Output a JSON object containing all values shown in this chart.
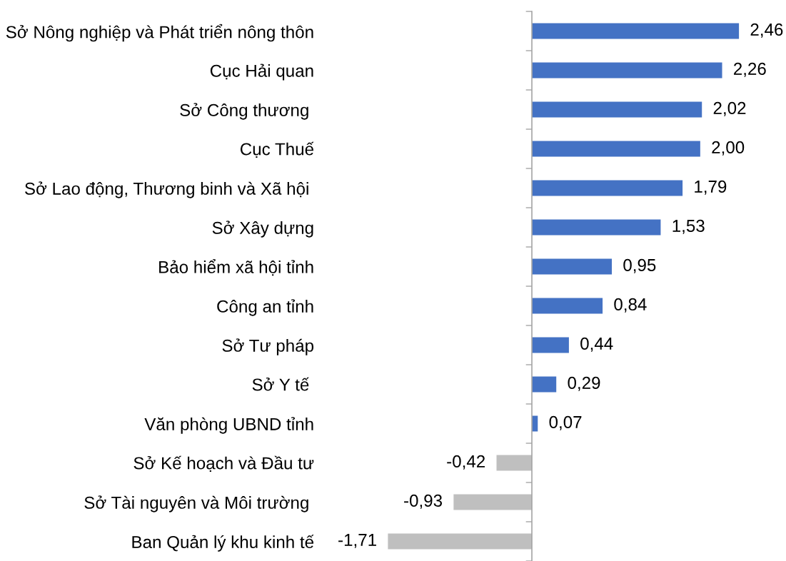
{
  "chart_data": {
    "type": "bar",
    "orientation": "horizontal",
    "categories": [
      "Sở Nông nghiệp và Phát triển nông thôn",
      "Cục Hải quan",
      "Sở Công thương ",
      "Cục Thuế",
      "Sở Lao động, Thương binh và Xã hội ",
      "Sở Xây dựng",
      "Bảo hiểm xã hội tỉnh",
      "Công an tỉnh",
      "Sở Tư pháp",
      "Sở Y tế ",
      "Văn phòng UBND tỉnh",
      "Sở Kế hoạch và Đầu tư",
      "Sở Tài nguyên và Môi trường ",
      "Ban Quản lý khu kinh tế"
    ],
    "values": [
      2.46,
      2.26,
      2.02,
      2.0,
      1.79,
      1.53,
      0.95,
      0.84,
      0.44,
      0.29,
      0.07,
      -0.42,
      -0.93,
      -1.71
    ],
    "colors": [
      "#4472c4",
      "#4472c4",
      "#4472c4",
      "#4472c4",
      "#4472c4",
      "#4472c4",
      "#4472c4",
      "#4472c4",
      "#4472c4",
      "#4472c4",
      "#4472c4",
      "#bfbfbf",
      "#bfbfbf",
      "#bfbfbf"
    ],
    "value_labels": [
      "2,46",
      "2,26",
      "2,02",
      "2,00",
      "1,79",
      "1,53",
      "0,95",
      "0,84",
      "0,44",
      "0,29",
      "0,07",
      "-0,42",
      "-0,93",
      "-1,71"
    ]
  }
}
